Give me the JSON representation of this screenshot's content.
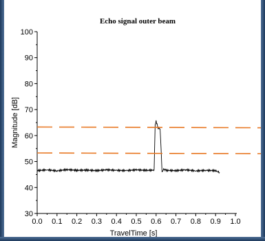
{
  "chart_data": {
    "type": "line",
    "title": "Echo signal outer beam",
    "xlabel": "TravelTime [s]",
    "ylabel": "Magnitude [dB]",
    "xlim": [
      0,
      1.0
    ],
    "ylim": [
      30,
      100
    ],
    "xticks": [
      "0.0",
      "0.1",
      "0.2",
      "0.3",
      "0.4",
      "0.5",
      "0.6",
      "0.7",
      "0.8",
      "0.9",
      "1.0"
    ],
    "yticks": [
      "30",
      "40",
      "50",
      "60",
      "70",
      "80",
      "90",
      "100"
    ],
    "grid": false,
    "colors": {
      "signal": "#000000",
      "threshold": "#e87722"
    },
    "series": [
      {
        "style": "solid",
        "x": [
          0.0,
          0.05,
          0.1,
          0.15,
          0.2,
          0.25,
          0.3,
          0.35,
          0.4,
          0.45,
          0.5,
          0.55,
          0.59,
          0.595,
          0.6,
          0.61,
          0.62,
          0.625,
          0.63,
          0.635,
          0.64,
          0.65,
          0.7,
          0.75,
          0.8,
          0.85,
          0.9,
          0.92
        ],
        "y": [
          46.5,
          46.8,
          46.4,
          46.9,
          46.6,
          46.7,
          46.5,
          46.8,
          46.6,
          46.5,
          46.8,
          46.6,
          46.7,
          64.0,
          65.5,
          63.0,
          62.5,
          55.0,
          46.0,
          46.8,
          47.0,
          46.6,
          46.5,
          46.8,
          46.4,
          46.6,
          46.5,
          45.8
        ]
      },
      {
        "style": "dashed",
        "x": [
          0.0,
          1.0
        ],
        "y": [
          63.3,
          63.0
        ]
      },
      {
        "style": "dashed",
        "x": [
          0.0,
          1.0
        ],
        "y": [
          53.3,
          53.0
        ]
      }
    ]
  }
}
